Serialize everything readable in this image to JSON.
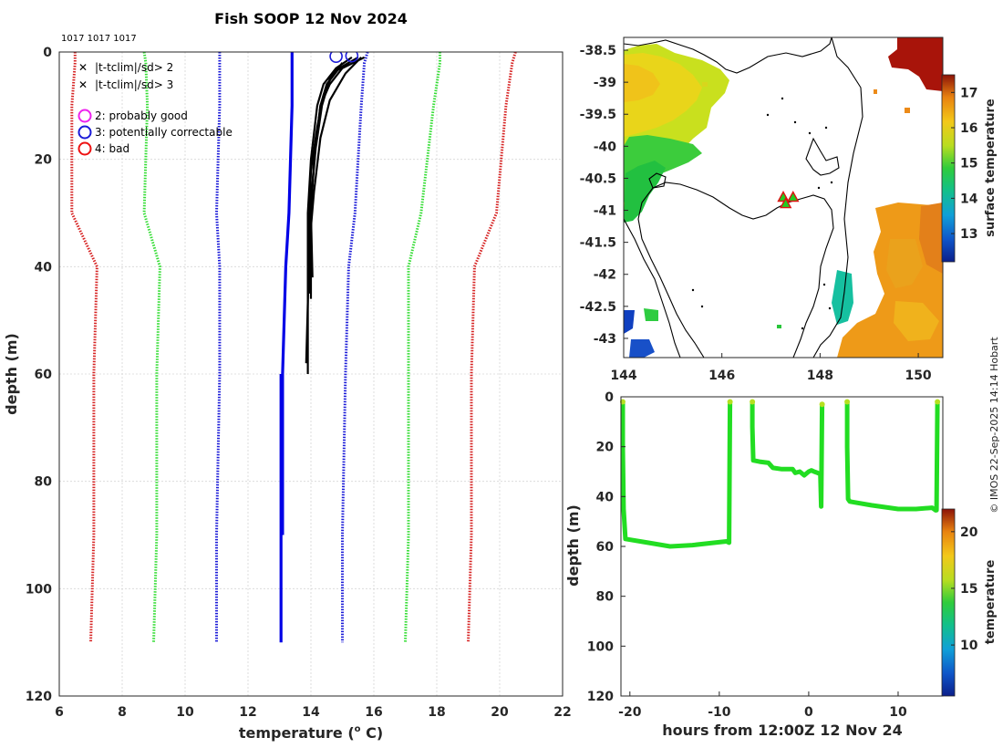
{
  "title": "Fish SOOP 12 Nov 2024",
  "ids_label": "1017 1017 1017",
  "credit": "© IMOS 22-Sep-2025 14:14 Hobart",
  "colors": {
    "clim_red": "#d62222",
    "clim_green": "#33dd33",
    "clim_blue": "#1a1ad8",
    "mean_blue": "#0000e6",
    "profile_black": "#000000",
    "track_green": "#22dd22",
    "land_line": "#000000"
  },
  "chart_data": [
    {
      "id": "profile",
      "type": "line",
      "title": "Fish SOOP 12 Nov 2024",
      "xlabel": "temperature (° C)",
      "xlabel_main": "temperature (",
      "xlabel_sup": "o",
      "xlabel_tail": " C)",
      "ylabel": "depth (m)",
      "xlim": [
        6,
        22
      ],
      "ylim": [
        0,
        120
      ],
      "xticks": [
        6,
        8,
        10,
        12,
        14,
        16,
        18,
        20,
        22
      ],
      "yticks": [
        0,
        20,
        40,
        60,
        80,
        100,
        120
      ],
      "grid": true,
      "legend": [
        {
          "symbol": "x",
          "color": "#22cc22",
          "label": "|t-tclim|/sd> 2"
        },
        {
          "symbol": "x",
          "color": "#dd1111",
          "label": "|t-tclim|/sd> 3"
        },
        {
          "symbol": "o",
          "color": "#ee22ee",
          "label": "2: probably good"
        },
        {
          "symbol": "o",
          "color": "#1a1ad8",
          "label": "3: potentially correctable"
        },
        {
          "symbol": "o",
          "color": "#ee1111",
          "label": "4: bad"
        }
      ],
      "series": [
        {
          "name": "clim_mean",
          "style": "solid",
          "color": "#0000e6",
          "depth": [
            0,
            2,
            10,
            30,
            40,
            60,
            90
          ],
          "temp": [
            13.4,
            13.4,
            13.4,
            13.3,
            13.2,
            13.1,
            13.1
          ]
        },
        {
          "name": "clim_mean_deep",
          "style": "solid",
          "color": "#0000e6",
          "depth": [
            60,
            110
          ],
          "temp": [
            13.05,
            13.05
          ]
        },
        {
          "name": "clim_minus_2sd",
          "style": "dotted",
          "color": "#1a1ad8",
          "depth": [
            0,
            2,
            10,
            30,
            40,
            60,
            90,
            110
          ],
          "temp": [
            11.1,
            11.1,
            11.1,
            11.0,
            11.1,
            11.1,
            11.0,
            11.0
          ]
        },
        {
          "name": "clim_plus_2sd",
          "style": "dotted",
          "color": "#1a1ad8",
          "depth": [
            0,
            2,
            10,
            30,
            40,
            60,
            90,
            110
          ],
          "temp": [
            15.8,
            15.7,
            15.6,
            15.4,
            15.2,
            15.1,
            15.0,
            15.0
          ]
        },
        {
          "name": "clim_minus_4sd",
          "style": "dotted",
          "color": "#33dd33",
          "depth": [
            0,
            2,
            10,
            30,
            40,
            60,
            90,
            110
          ],
          "temp": [
            8.7,
            8.75,
            8.8,
            8.7,
            9.2,
            9.1,
            9.1,
            9.0
          ]
        },
        {
          "name": "clim_plus_4sd",
          "style": "dotted",
          "color": "#33dd33",
          "depth": [
            0,
            2,
            10,
            30,
            40,
            60,
            90,
            110
          ],
          "temp": [
            18.1,
            18.1,
            17.9,
            17.5,
            17.1,
            17.1,
            17.1,
            17.0
          ]
        },
        {
          "name": "clim_minus_6sd",
          "style": "dotted",
          "color": "#d62222",
          "depth": [
            0,
            2,
            10,
            30,
            40,
            60,
            90,
            110
          ],
          "temp": [
            6.5,
            6.5,
            6.4,
            6.4,
            7.2,
            7.1,
            7.1,
            7.0
          ]
        },
        {
          "name": "clim_plus_6sd",
          "style": "dotted",
          "color": "#d62222",
          "depth": [
            0,
            2,
            10,
            30,
            40,
            60,
            90,
            110
          ],
          "temp": [
            20.5,
            20.4,
            20.2,
            19.9,
            19.2,
            19.1,
            19.1,
            19.0
          ]
        },
        {
          "name": "profile_1",
          "style": "solid",
          "color": "#000000",
          "depth": [
            1,
            3,
            6,
            10,
            20,
            30,
            40,
            46
          ],
          "temp": [
            15.7,
            15.0,
            14.6,
            14.3,
            14.1,
            14.0,
            14.0,
            14.0
          ]
        },
        {
          "name": "profile_2",
          "style": "solid",
          "color": "#000000",
          "depth": [
            1,
            3,
            6,
            10,
            20,
            30,
            40,
            60
          ],
          "temp": [
            15.3,
            14.8,
            14.4,
            14.2,
            14.0,
            13.9,
            13.9,
            13.9
          ]
        },
        {
          "name": "profile_3",
          "style": "solid",
          "color": "#000000",
          "depth": [
            1,
            3,
            6,
            10,
            20,
            30,
            42
          ],
          "temp": [
            15.5,
            14.9,
            14.5,
            14.3,
            14.1,
            14.0,
            14.05
          ]
        },
        {
          "name": "profile_4",
          "style": "solid",
          "color": "#000000",
          "depth": [
            2,
            4,
            8,
            14,
            22,
            32,
            44
          ],
          "temp": [
            15.2,
            14.7,
            14.4,
            14.2,
            14.0,
            13.95,
            13.95
          ]
        },
        {
          "name": "profile_5",
          "style": "solid",
          "color": "#000000",
          "depth": [
            1,
            4,
            9,
            16,
            26,
            36,
            58
          ],
          "temp": [
            15.6,
            15.1,
            14.6,
            14.3,
            14.1,
            13.95,
            13.85
          ]
        },
        {
          "name": "profile_6",
          "style": "solid",
          "color": "#000000",
          "depth": [
            2,
            5,
            10,
            18,
            28,
            38,
            45
          ],
          "temp": [
            15.0,
            14.6,
            14.35,
            14.15,
            14.0,
            14.0,
            13.95
          ]
        }
      ],
      "flag_markers": [
        {
          "temp": 14.8,
          "depth": 0.8,
          "flag": 3
        },
        {
          "temp": 15.3,
          "depth": 0.7,
          "flag": 3
        }
      ]
    },
    {
      "id": "map",
      "type": "heatmap",
      "xlim": [
        144,
        150.5
      ],
      "ylim": [
        -43.3,
        -38.3
      ],
      "xticks": [
        144,
        146,
        148,
        150
      ],
      "yticks": [
        -38.5,
        -39,
        -39.5,
        -40,
        -40.5,
        -41,
        -41.5,
        -42,
        -42.5,
        -43
      ],
      "colorbar": {
        "label": "surface temperature",
        "range": [
          12.2,
          17.5
        ],
        "ticks": [
          13,
          14,
          15,
          16,
          17
        ]
      },
      "stations": [
        {
          "lon": 147.25,
          "lat": -40.8
        },
        {
          "lon": 147.3,
          "lat": -40.9
        },
        {
          "lon": 147.45,
          "lat": -40.8
        }
      ]
    },
    {
      "id": "track",
      "type": "scatter",
      "xlabel": "hours from 12:00Z 12 Nov 24",
      "ylabel": "depth (m)",
      "xlim": [
        -21,
        15
      ],
      "ylim": [
        0,
        120
      ],
      "xticks": [
        -20,
        -10,
        0,
        10
      ],
      "yticks": [
        0,
        20,
        40,
        60,
        80,
        100,
        120
      ],
      "colorbar": {
        "label": "temperature",
        "range": [
          5.5,
          22
        ],
        "ticks": [
          10,
          15,
          20
        ]
      },
      "segments": [
        {
          "hours": [
            -20.8,
            -20.8,
            -20.7,
            -20.5,
            -18,
            -15.5,
            -13,
            -10.5,
            -9.2,
            -8.9,
            -8.8
          ],
          "depth": [
            2,
            20,
            45,
            57,
            58.5,
            60,
            59.5,
            58.5,
            58,
            58.5,
            2
          ]
        },
        {
          "hours": [
            -6.3,
            -6.3,
            -6.2,
            -5.5,
            -4.5,
            -4,
            -3,
            -1.8,
            -1.5,
            -1,
            -0.5,
            0,
            0.3,
            0.6,
            1.0,
            1.3,
            1.4,
            1.5
          ],
          "depth": [
            2,
            12,
            25.5,
            26,
            26.5,
            28.5,
            29,
            29,
            30.5,
            30,
            31.5,
            30,
            29.5,
            30,
            30.5,
            31,
            44,
            3
          ]
        },
        {
          "hours": [
            4.3,
            4.3,
            4.4,
            4.6,
            7,
            10,
            12,
            13.8,
            14.2,
            14.3,
            14.4
          ],
          "depth": [
            2,
            20,
            41,
            42,
            43.5,
            45,
            45,
            44.5,
            45.5,
            45.5,
            2
          ]
        }
      ]
    }
  ]
}
